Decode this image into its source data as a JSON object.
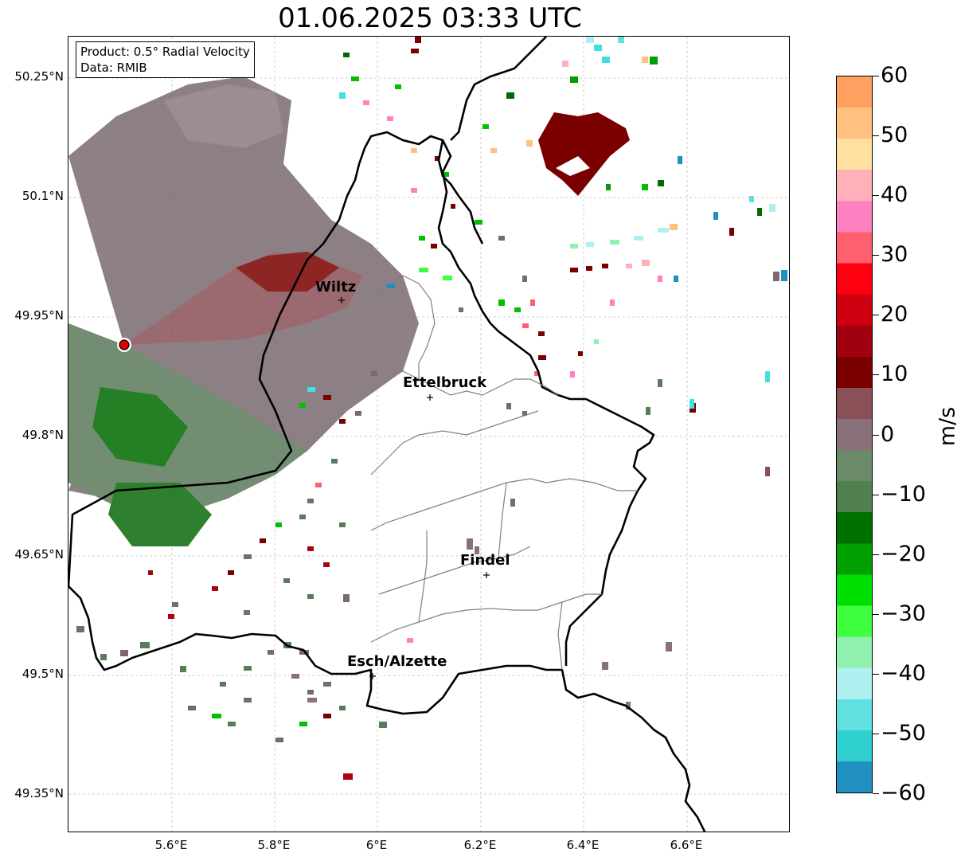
{
  "map": {
    "title": "01.06.2025 03:33 UTC",
    "info": {
      "product": "Product: 0.5° Radial Velocity",
      "source": "Data: RMIB"
    },
    "lat_ticks": [
      "50.25°N",
      "50.1°N",
      "49.95°N",
      "49.8°N",
      "49.65°N",
      "49.5°N",
      "49.35°N"
    ],
    "lon_ticks": [
      "5.6°E",
      "5.8°E",
      "6°E",
      "6.2°E",
      "6.4°E",
      "6.6°E"
    ],
    "cities": [
      "Wiltz",
      "Ettelbruck",
      "Findel",
      "Esch/Alzette"
    ],
    "colorbar": {
      "unit": "m/s",
      "ticks": [
        "60",
        "50",
        "40",
        "30",
        "20",
        "10",
        "0",
        "−10",
        "−20",
        "−30",
        "−40",
        "−50",
        "−60"
      ],
      "colors": [
        "#ffa060",
        "#ffc080",
        "#ffe0a0",
        "#ffb0b8",
        "#ff80c0",
        "#ff6070",
        "#ff0010",
        "#d00010",
        "#a00010",
        "#7a0000",
        "#8a5058",
        "#8a7078",
        "#6a8a6a",
        "#508050",
        "#007000",
        "#00a000",
        "#00e000",
        "#40ff40",
        "#90f0b0",
        "#b0f0f0",
        "#60e0e0",
        "#30d0d0",
        "#2090c0"
      ]
    },
    "radar_site": "radar-marker"
  }
}
